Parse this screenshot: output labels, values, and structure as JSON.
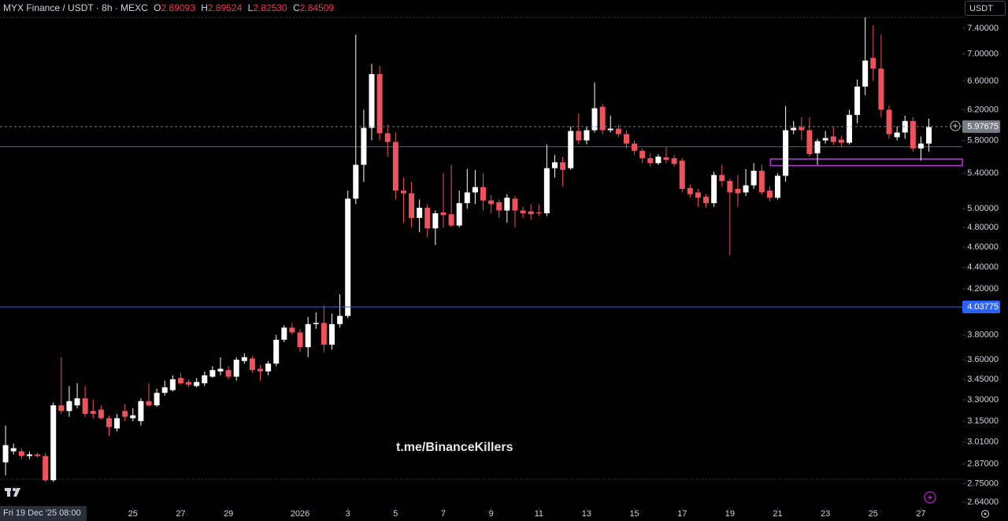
{
  "header": {
    "symbol": "MYX Finance / USDT · 8h · MEXC",
    "o_label": "O",
    "o": "2.89093",
    "h_label": "H",
    "h": "2.89524",
    "l_label": "L",
    "l": "2.82530",
    "c_label": "C",
    "c": "2.84509"
  },
  "currency_button": "USDT",
  "watermark": "t.me/BinanceKillers",
  "crosshair_label": "Fri 19 Dec '25  08:00",
  "chart_data": {
    "type": "candlestick",
    "log_scale": true,
    "up_color": "#ffffff",
    "down_color": "#f0525c",
    "open": [
      2.88,
      2.95,
      2.95,
      2.92,
      2.93,
      2.92,
      2.77,
      3.26,
      3.22,
      3.26,
      3.31,
      3.22,
      3.23,
      3.17,
      3.1,
      3.22,
      3.17,
      3.15,
      3.29,
      3.26,
      3.35,
      3.37,
      3.46,
      3.43,
      3.4,
      3.42,
      3.47,
      3.51,
      3.52,
      3.47,
      3.59,
      3.61,
      3.53,
      3.51,
      3.57,
      3.76,
      3.86,
      3.82,
      3.7,
      3.89,
      3.9,
      3.72,
      3.89,
      3.96,
      5.11,
      5.5,
      5.96,
      6.7,
      5.89,
      5.78,
      5.2,
      5.17,
      4.9,
      5.01,
      4.79,
      4.96,
      4.94,
      4.82,
      5.06,
      5.18,
      5.24,
      5.09,
      5.07,
      4.98,
      5.11,
      4.98,
      4.97,
      4.96,
      4.95,
      5.46,
      5.53,
      5.46,
      5.92,
      5.8,
      5.93,
      6.24,
      5.93,
      5.95,
      5.88,
      5.76,
      5.67,
      5.58,
      5.52,
      5.59,
      5.58,
      5.55,
      5.23,
      5.18,
      5.13,
      5.06,
      5.38,
      5.31,
      5.22,
      5.18,
      5.26,
      5.43,
      5.2,
      5.12,
      5.37,
      5.93,
      5.97,
      5.93,
      5.64,
      5.8,
      5.85,
      5.81,
      5.77,
      6.13,
      6.52,
      6.94,
      6.78,
      6.2,
      5.84,
      5.9,
      6.05,
      5.7,
      5.76
    ],
    "high": [
      3.12,
      3.0,
      2.97,
      2.95,
      2.94,
      2.94,
      3.28,
      3.62,
      3.4,
      3.42,
      3.4,
      3.3,
      3.26,
      3.19,
      3.2,
      3.27,
      3.24,
      3.31,
      3.42,
      3.38,
      3.44,
      3.48,
      3.5,
      3.45,
      3.46,
      3.51,
      3.55,
      3.62,
      3.55,
      3.62,
      3.65,
      3.63,
      3.56,
      3.59,
      3.8,
      3.88,
      3.9,
      3.85,
      3.95,
      3.99,
      4.05,
      3.98,
      4.15,
      5.2,
      7.3,
      6.2,
      6.85,
      6.82,
      6.0,
      5.9,
      5.35,
      5.3,
      5.1,
      5.05,
      4.98,
      5.4,
      5.5,
      5.2,
      5.45,
      5.44,
      5.4,
      5.15,
      5.1,
      5.16,
      5.14,
      5.02,
      5.05,
      5.05,
      5.75,
      5.62,
      5.6,
      5.98,
      6.15,
      5.98,
      6.58,
      6.28,
      6.12,
      6.0,
      5.93,
      5.8,
      5.7,
      5.64,
      5.63,
      5.72,
      5.62,
      5.58,
      5.27,
      5.22,
      5.16,
      5.42,
      5.5,
      5.34,
      5.38,
      5.45,
      5.52,
      5.5,
      5.25,
      5.4,
      6.25,
      6.05,
      6.1,
      6.1,
      5.82,
      5.92,
      5.98,
      5.86,
      6.2,
      6.62,
      7.58,
      7.45,
      7.3,
      6.26,
      5.98,
      6.12,
      6.1,
      5.85,
      6.08
    ],
    "low": [
      2.8,
      2.93,
      2.9,
      2.9,
      2.91,
      2.76,
      2.76,
      3.2,
      3.18,
      3.24,
      3.18,
      3.17,
      3.16,
      3.05,
      3.08,
      3.15,
      3.15,
      3.12,
      3.25,
      3.25,
      3.33,
      3.36,
      3.41,
      3.39,
      3.39,
      3.4,
      3.46,
      3.48,
      3.45,
      3.44,
      3.57,
      3.5,
      3.44,
      3.48,
      3.55,
      3.74,
      3.8,
      3.66,
      3.62,
      3.85,
      3.66,
      3.68,
      3.86,
      3.94,
      5.05,
      5.3,
      5.8,
      5.8,
      5.6,
      5.1,
      4.85,
      4.8,
      4.75,
      4.7,
      4.62,
      4.8,
      4.8,
      4.8,
      5.0,
      5.05,
      4.98,
      4.95,
      4.9,
      4.85,
      4.8,
      4.9,
      4.88,
      4.92,
      4.92,
      5.35,
      5.25,
      5.44,
      5.75,
      5.75,
      5.9,
      5.88,
      5.9,
      5.84,
      5.7,
      5.62,
      5.52,
      5.48,
      5.5,
      5.52,
      5.48,
      5.18,
      5.12,
      5.02,
      5.01,
      5.02,
      5.25,
      4.52,
      5.02,
      5.14,
      5.22,
      5.15,
      5.08,
      5.1,
      5.3,
      5.88,
      5.8,
      5.6,
      5.5,
      5.76,
      5.74,
      5.72,
      5.75,
      6.02,
      6.4,
      6.6,
      6.1,
      5.82,
      5.8,
      5.82,
      5.66,
      5.55,
      5.66
    ],
    "close": [
      2.99,
      2.97,
      2.92,
      2.93,
      2.92,
      2.77,
      3.26,
      3.22,
      3.29,
      3.31,
      3.2,
      3.2,
      3.17,
      3.11,
      3.17,
      3.18,
      3.19,
      3.29,
      3.26,
      3.35,
      3.39,
      3.45,
      3.42,
      3.41,
      3.43,
      3.48,
      3.52,
      3.53,
      3.47,
      3.6,
      3.62,
      3.52,
      3.51,
      3.57,
      3.76,
      3.86,
      3.82,
      3.7,
      3.89,
      3.9,
      3.72,
      3.89,
      3.96,
      5.11,
      5.5,
      5.96,
      6.7,
      5.89,
      5.78,
      5.2,
      5.17,
      4.9,
      5.01,
      4.79,
      4.95,
      4.93,
      4.82,
      5.06,
      5.18,
      5.24,
      5.09,
      5.05,
      4.98,
      5.12,
      4.98,
      4.95,
      4.94,
      4.95,
      5.46,
      5.53,
      5.44,
      5.92,
      5.8,
      5.93,
      6.22,
      5.93,
      5.95,
      5.88,
      5.76,
      5.67,
      5.58,
      5.52,
      5.6,
      5.56,
      5.51,
      5.22,
      5.16,
      5.12,
      5.06,
      5.38,
      5.31,
      5.18,
      5.17,
      5.26,
      5.43,
      5.18,
      5.12,
      5.37,
      5.93,
      5.96,
      5.93,
      5.63,
      5.79,
      5.83,
      5.78,
      5.77,
      6.13,
      6.52,
      6.9,
      6.78,
      6.2,
      5.88,
      5.9,
      6.05,
      5.7,
      5.76,
      5.97
    ],
    "xlim": [
      -0.7,
      120.2
    ],
    "xticks": [
      {
        "value": 16,
        "label": "25"
      },
      {
        "value": 22,
        "label": "27"
      },
      {
        "value": 28,
        "label": "29"
      },
      {
        "value": 37,
        "label": "2026"
      },
      {
        "value": 43,
        "label": "3"
      },
      {
        "value": 49,
        "label": "5"
      },
      {
        "value": 55,
        "label": "7"
      },
      {
        "value": 61,
        "label": "9"
      },
      {
        "value": 67,
        "label": "11"
      },
      {
        "value": 73,
        "label": "13"
      },
      {
        "value": 79,
        "label": "15"
      },
      {
        "value": 85,
        "label": "17"
      },
      {
        "value": 91,
        "label": "19"
      },
      {
        "value": 97,
        "label": "21"
      },
      {
        "value": 103,
        "label": "23"
      },
      {
        "value": 109,
        "label": "25"
      },
      {
        "value": 115,
        "label": "27"
      }
    ],
    "ylim": [
      2.61,
      7.58
    ],
    "yticks": [
      {
        "value": 7.4,
        "label": "7.40000"
      },
      {
        "value": 7.0,
        "label": "7.00000"
      },
      {
        "value": 6.6,
        "label": "6.60000"
      },
      {
        "value": 6.2,
        "label": "6.20000"
      },
      {
        "value": 5.8,
        "label": "5.80000"
      },
      {
        "value": 5.4,
        "label": "5.40000"
      },
      {
        "value": 5.0,
        "label": "5.00000"
      },
      {
        "value": 4.8,
        "label": "4.80000"
      },
      {
        "value": 4.6,
        "label": "4.60000"
      },
      {
        "value": 4.4,
        "label": "4.40000"
      },
      {
        "value": 4.2,
        "label": "4.20000"
      },
      {
        "value": 3.8,
        "label": "3.80000"
      },
      {
        "value": 3.6,
        "label": "3.60000"
      },
      {
        "value": 3.45,
        "label": "3.45000"
      },
      {
        "value": 3.3,
        "label": "3.30000"
      },
      {
        "value": 3.15,
        "label": "3.15000"
      },
      {
        "value": 3.01,
        "label": "3.01000"
      },
      {
        "value": 2.87,
        "label": "2.87000"
      },
      {
        "value": 2.75,
        "label": "2.75000"
      },
      {
        "value": 2.64,
        "label": "2.64000"
      }
    ],
    "price_lines": [
      {
        "value": 5.97675,
        "color": "#787b86",
        "style": "dashed"
      },
      {
        "value": 4.03775,
        "color": "#2962ff",
        "style": "solid"
      }
    ],
    "levels": [
      5.72
    ],
    "zone": {
      "start": 96.1,
      "high": 5.57,
      "low": 5.49,
      "color": "#b43fd6"
    }
  }
}
